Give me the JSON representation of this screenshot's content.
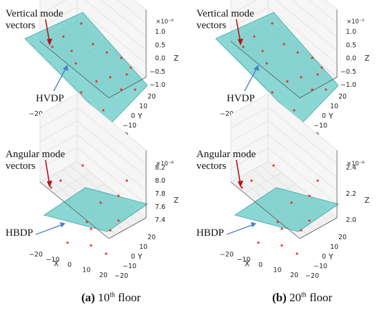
{
  "colors": {
    "plane": "#5ec7c4",
    "plane_edge": "#3aa8a4",
    "point": "#e8332b",
    "arrow_red": "#b3141b",
    "arrow_blue": "#4a7fc8",
    "grid": "#dcdcdc",
    "pane": "#f6f6f6"
  },
  "panels": [
    {
      "id": "a-top",
      "annotation": [
        "Vertical mode",
        "vectors"
      ],
      "plane_label": "HVDP",
      "sci": "×10⁻⁶",
      "z_ticks": [
        "1.0",
        "0.5",
        "0.0",
        "−0.5",
        "−1.0"
      ],
      "z_label": "Z"
    },
    {
      "id": "b-top",
      "annotation": [
        "Vertical mode",
        "vectors"
      ],
      "plane_label": "HVDP",
      "sci": "×10⁻⁵",
      "z_ticks": [
        "1.0",
        "0.5",
        "0.0",
        "−0.5",
        "−1.0"
      ],
      "z_label": "Z"
    },
    {
      "id": "a-bottom",
      "annotation": [
        "Angular mode",
        "vectors"
      ],
      "plane_label": "HBDP",
      "sci": "×10⁻⁸",
      "z_ticks": [
        "8.2",
        "8.0",
        "7.8",
        "7.6",
        "7.4"
      ],
      "z_label": "Z"
    },
    {
      "id": "b-bottom",
      "annotation": [
        "Angular mode",
        "vectors"
      ],
      "plane_label": "HBDP",
      "sci": "×10⁻⁸",
      "z_ticks": [
        "2.4",
        "2.2",
        "2.0"
      ],
      "z_label": "Z"
    }
  ],
  "x_ticks": [
    "−20",
    "−10",
    "0",
    "10",
    "20"
  ],
  "y_ticks": [
    "20",
    "10",
    "0",
    "−10",
    "−20"
  ],
  "x_label": "X",
  "y_label": "Y",
  "captions": {
    "a": {
      "tag": "(a)",
      "num": "10",
      "sup": "th",
      "rest": " floor"
    },
    "b": {
      "tag": "(b)",
      "num": "20",
      "sup": "th",
      "rest": " floor"
    }
  }
}
